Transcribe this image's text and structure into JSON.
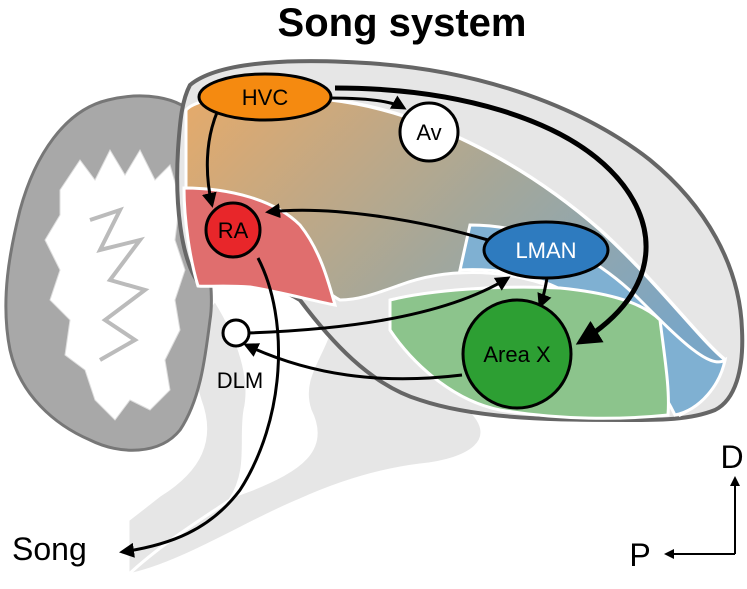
{
  "title": "Song system",
  "nodes": {
    "hvc": "HVC",
    "av": "Av",
    "ra": "RA",
    "lman": "LMAN",
    "area_x": "Area X",
    "dlm": "DLM"
  },
  "output_label": "Song",
  "axes": {
    "dorsal": "D",
    "posterior": "P"
  },
  "colors": {
    "hvc": "#f58a10",
    "ra": "#e8262a",
    "lman": "#2e7bbf",
    "area_x": "#2d9f33",
    "brain": "#e6e6e6",
    "cerebellum": "#a8a8a8"
  }
}
